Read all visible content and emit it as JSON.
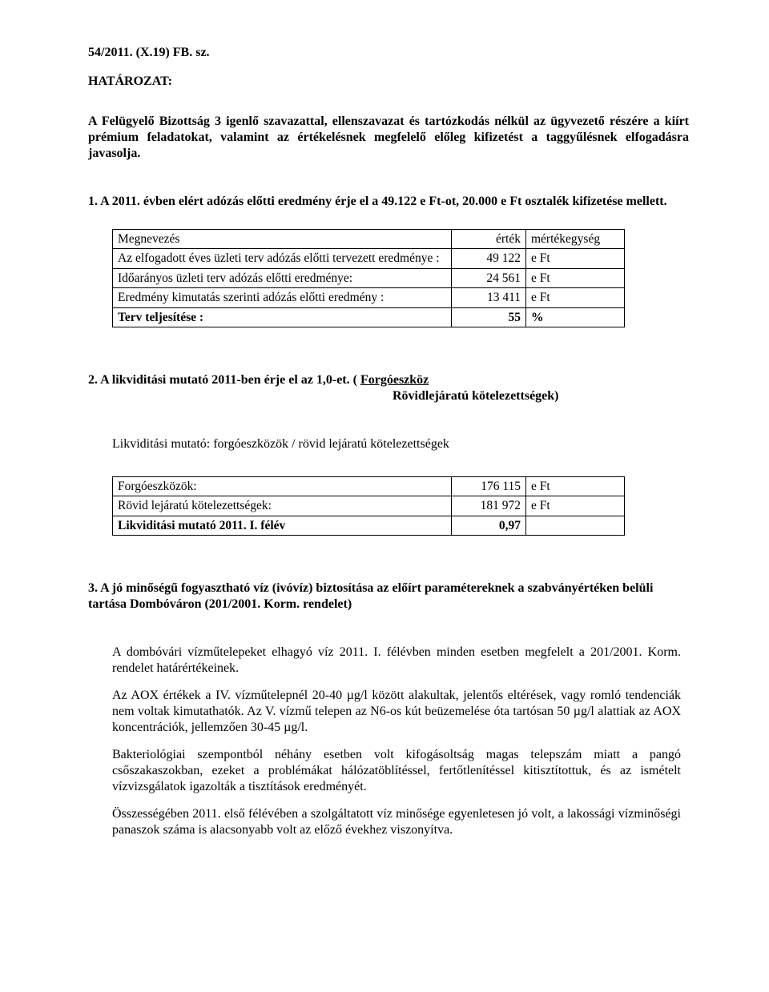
{
  "ref": "54/2011. (X.19) FB. sz.",
  "decree_label": "HATÁROZAT:",
  "intro": "A Felügyelő Bizottság 3 igenlő szavazattal, ellenszavazat és tartózkodás nélkül az ügyvezető részére a kiírt prémium feladatokat, valamint az értékelésnek megfelelő előleg kifizetést a taggyűlésnek elfogadásra javasolja.",
  "s1": {
    "title": "1. A 2011. évben elért adózás előtti eredmény érje el a 49.122 e Ft-ot, 20.000 e Ft osztalék kifizetése mellett.",
    "table": {
      "header": {
        "name": "Megnevezés",
        "val": "érték",
        "unit": "mértékegység"
      },
      "rows": [
        {
          "name": "Az elfogadott éves üzleti terv adózás előtti tervezett eredménye :",
          "val": "49 122",
          "unit": "e Ft"
        },
        {
          "name": "Időarányos üzleti terv adózás előtti eredménye:",
          "val": "24 561",
          "unit": "e Ft"
        },
        {
          "name": "Eredmény kimutatás szerinti adózás előtti eredmény :",
          "val": "13 411",
          "unit": "e Ft"
        },
        {
          "name": "Terv teljesítése :",
          "val": "55",
          "unit": "%"
        }
      ]
    }
  },
  "s2": {
    "title_a": "2. A likviditási mutató 2011-ben érje el az 1,0-et.  ( ",
    "title_b": "Forgóeszköz",
    "title_c": "Rövidlejáratú kötelezettségek)",
    "sub": "Likviditási mutató:  forgóeszközök / rövid lejáratú kötelezettségek",
    "table": {
      "rows": [
        {
          "name": "Forgóeszközök:",
          "val": "176 115",
          "unit": "e Ft"
        },
        {
          "name": "Rövid lejáratú kötelezettségek:",
          "val": "181 972",
          "unit": "e Ft"
        },
        {
          "name": "Likviditási mutató 2011. I. félév",
          "val": "0,97",
          "unit": ""
        }
      ]
    }
  },
  "s3": {
    "title": "3. A jó minőségű fogyasztható víz (ivóvíz) biztosítása az előírt paramétereknek a szabványértéken belüli tartása Dombóváron (201/2001. Korm. rendelet)",
    "p1": "A dombóvári vízműtelepeket elhagyó víz 2011. I. félévben minden esetben megfelelt a 201/2001. Korm. rendelet határértékeinek.",
    "p2": "Az AOX értékek a IV. vízműtelepnél 20-40 µg/l között alakultak, jelentős eltérések, vagy romló tendenciák nem voltak kimutathatók. Az V. vízmű telepen az N6-os kút beüzemelése óta tartósan 50 µg/l alattiak az AOX koncentrációk, jellemzően 30-45 µg/l.",
    "p3": "Bakteriológiai szempontból néhány esetben volt kifogásoltság magas telepszám miatt a pangó csőszakaszokban, ezeket a problémákat hálózatöblítéssel, fertőtlenítéssel kitisztítottuk, és az ismételt vízvizsgálatok igazolták a tisztítások eredményét.",
    "p4": "Összességében 2011. első félévében a szolgáltatott víz minősége egyenletesen jó volt, a lakossági vízminőségi panaszok száma is alacsonyabb volt az előző évekhez viszonyítva."
  }
}
